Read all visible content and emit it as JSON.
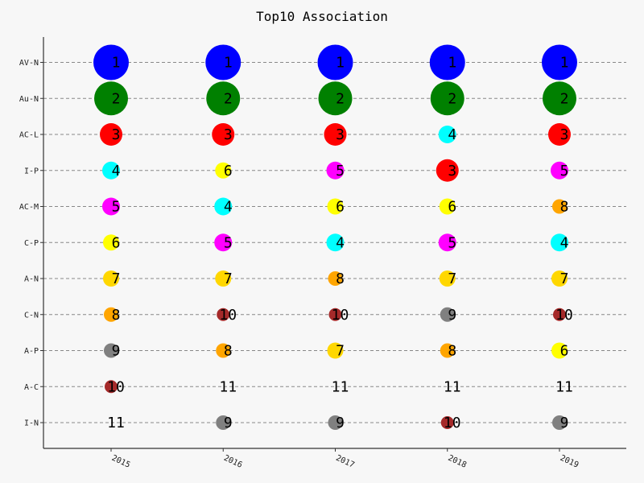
{
  "chart_data": {
    "type": "scatter",
    "title": "Top10 Association",
    "xlabel": "",
    "ylabel": "",
    "grid": "horizontal-dashed",
    "x": [
      "2015",
      "2016",
      "2017",
      "2018",
      "2019"
    ],
    "y_categories": [
      "AV-N",
      "Au-N",
      "AC-L",
      "I-P",
      "AC-M",
      "C-P",
      "A-N",
      "C-N",
      "A-P",
      "A-C",
      "I-N"
    ],
    "rank_colors": {
      "1": "#0000ff",
      "2": "#008000",
      "3": "#ff0000",
      "4": "#00ffff",
      "5": "#ff00ff",
      "6": "#ffff00",
      "7": "#ffd700",
      "8": "#ffa500",
      "9": "#808080",
      "10": "#a52a2a",
      "11": "none"
    },
    "series": [
      {
        "x": "2015",
        "ranks": [
          1,
          2,
          3,
          4,
          5,
          6,
          7,
          8,
          9,
          10,
          11
        ]
      },
      {
        "x": "2016",
        "ranks": [
          1,
          2,
          3,
          6,
          4,
          5,
          7,
          10,
          8,
          11,
          9
        ]
      },
      {
        "x": "2017",
        "ranks": [
          1,
          2,
          3,
          5,
          6,
          4,
          8,
          10,
          7,
          11,
          9
        ]
      },
      {
        "x": "2018",
        "ranks": [
          1,
          2,
          4,
          3,
          6,
          5,
          7,
          9,
          8,
          11,
          10
        ]
      },
      {
        "x": "2019",
        "ranks": [
          1,
          2,
          3,
          5,
          8,
          4,
          7,
          10,
          6,
          11,
          9
        ]
      }
    ]
  }
}
